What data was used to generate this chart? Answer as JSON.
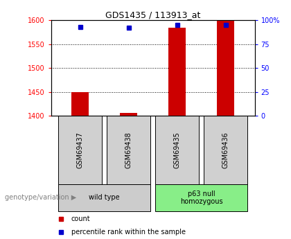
{
  "title": "GDS1435 / 113913_at",
  "samples": [
    "GSM69437",
    "GSM69438",
    "GSM69435",
    "GSM69436"
  ],
  "count_values": [
    1450,
    1406,
    1585,
    1600
  ],
  "percentile_values": [
    93,
    92,
    95,
    95
  ],
  "ylim_left": [
    1400,
    1600
  ],
  "ylim_right": [
    0,
    100
  ],
  "yticks_left": [
    1400,
    1450,
    1500,
    1550,
    1600
  ],
  "yticks_right": [
    0,
    25,
    50,
    75,
    100
  ],
  "ytick_right_labels": [
    "0",
    "25",
    "50",
    "75",
    "100%"
  ],
  "bar_color": "#cc0000",
  "square_color": "#0000cc",
  "group1_label": "wild type",
  "group2_label": "p63 null\nhomozygous",
  "group1_bg": "#cccccc",
  "group2_bg": "#88ee88",
  "genotype_label": "genotype/variation",
  "legend_count": "count",
  "legend_percentile": "percentile rank within the sample",
  "bar_width": 0.35,
  "baseline": 1400,
  "x_positions": [
    1,
    2,
    3,
    4
  ],
  "grid_lines": [
    1450,
    1500,
    1550
  ],
  "title_fontsize": 9,
  "tick_fontsize": 7,
  "label_fontsize": 7,
  "sample_box_bg": "#d0d0d0"
}
